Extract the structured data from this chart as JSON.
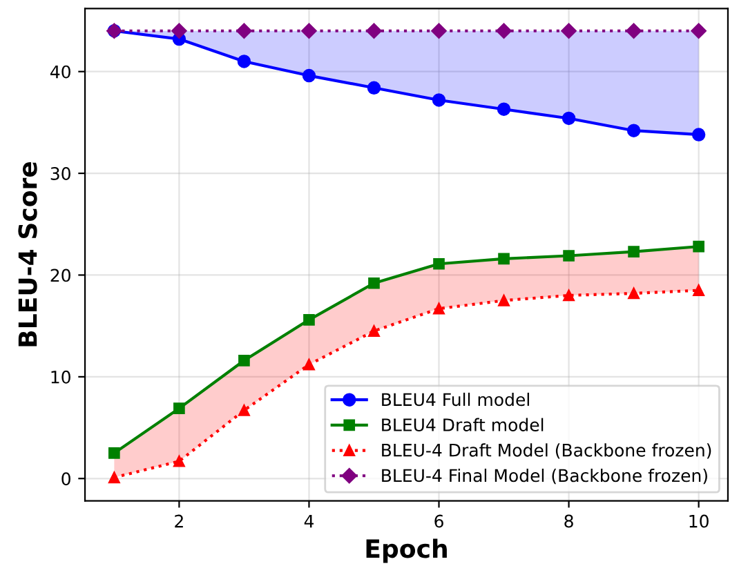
{
  "chart_data": {
    "type": "line",
    "xlabel": "Epoch",
    "ylabel": "BLEU-4 Score",
    "x": [
      1,
      2,
      3,
      4,
      5,
      6,
      7,
      8,
      9,
      10
    ],
    "series": [
      {
        "name": "BLEU4 Full model",
        "color": "#0000ff",
        "marker": "circle",
        "line_style": "solid",
        "values": [
          44.0,
          43.2,
          41.0,
          39.6,
          38.4,
          37.2,
          36.3,
          35.4,
          34.2,
          33.8
        ],
        "lower": [
          44.0,
          43.2,
          41.0,
          39.6,
          38.4,
          37.2,
          36.3,
          35.4,
          34.2,
          33.8
        ],
        "upper": [
          44,
          44,
          44,
          44,
          44,
          44,
          44,
          44,
          44,
          44
        ]
      },
      {
        "name": "BLEU4 Draft model",
        "color": "#008000",
        "marker": "square",
        "line_style": "solid",
        "values": [
          2.5,
          6.9,
          11.6,
          15.6,
          19.2,
          21.1,
          21.6,
          21.9,
          22.3,
          22.8
        ]
      },
      {
        "name": "BLEU-4 Draft Model (Backbone frozen)",
        "color": "#ff0000",
        "marker": "triangle",
        "line_style": "dotted",
        "values": [
          0.1,
          1.7,
          6.7,
          11.2,
          14.5,
          16.7,
          17.5,
          18.0,
          18.2,
          18.5
        ],
        "lower": [
          0.1,
          1.7,
          6.7,
          11.2,
          14.5,
          16.7,
          17.5,
          18.0,
          18.2,
          18.5
        ],
        "upper": [
          2.5,
          6.9,
          11.6,
          15.6,
          19.2,
          21.1,
          21.6,
          21.9,
          22.3,
          22.8
        ]
      },
      {
        "name": "BLEU-4 Final Model (Backbone frozen)",
        "color": "#800080",
        "marker": "diamond",
        "line_style": "dotted",
        "values": [
          44,
          44,
          44,
          44,
          44,
          44,
          44,
          44,
          44,
          44
        ]
      }
    ],
    "xlim": [
      0.55,
      10.45
    ],
    "xticks": [
      2,
      4,
      6,
      8,
      10
    ],
    "ylim": [
      -2.2,
      46.2
    ],
    "yticks": [
      0,
      10,
      20,
      30,
      40
    ],
    "grid": true,
    "legend": "bottom right"
  }
}
